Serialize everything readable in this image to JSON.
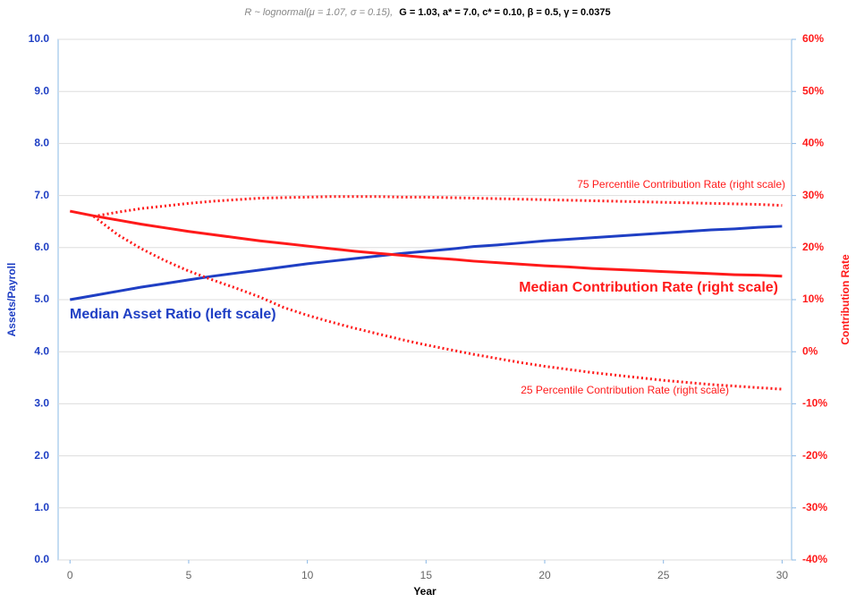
{
  "chart_data": {
    "type": "line",
    "title": {
      "distribution": "R ~ lognormal(μ = 1.07, σ = 0.15),",
      "parameters": "G = 1.03, a* = 7.0, c* = 0.10, β = 0.5, γ = 0.0375"
    },
    "x_label": "Year",
    "y_label": "Assets/Payroll",
    "y2_label": "Contribution Rate",
    "x": [
      0,
      1,
      2,
      3,
      4,
      5,
      6,
      7,
      8,
      9,
      10,
      11,
      12,
      13,
      14,
      15,
      16,
      17,
      18,
      19,
      20,
      21,
      22,
      23,
      24,
      25,
      26,
      27,
      28,
      29,
      30
    ],
    "xlim": [
      -0.5,
      30.4
    ],
    "xticks": [
      0,
      5,
      10,
      15,
      20,
      25,
      30
    ],
    "ylim": [
      0,
      10
    ],
    "yticks": [
      {
        "value": 0,
        "label": "0.0"
      },
      {
        "value": 1,
        "label": "1.0"
      },
      {
        "value": 2,
        "label": "2.0"
      },
      {
        "value": 3,
        "label": "3.0"
      },
      {
        "value": 4,
        "label": "4.0"
      },
      {
        "value": 5,
        "label": "5.0"
      },
      {
        "value": 6,
        "label": "6.0"
      },
      {
        "value": 7,
        "label": "7.0"
      },
      {
        "value": 8,
        "label": "8.0"
      },
      {
        "value": 9,
        "label": "9.0"
      },
      {
        "value": 10,
        "label": "10.0"
      }
    ],
    "y2lim": [
      -40,
      60
    ],
    "y2ticks": [
      {
        "value": -40,
        "label": "-40%"
      },
      {
        "value": -30,
        "label": "-30%"
      },
      {
        "value": -20,
        "label": "-20%"
      },
      {
        "value": -10,
        "label": "-10%"
      },
      {
        "value": 0,
        "label": "0%"
      },
      {
        "value": 10,
        "label": "10%"
      },
      {
        "value": 20,
        "label": "20%"
      },
      {
        "value": 30,
        "label": "30%"
      },
      {
        "value": 40,
        "label": "40%"
      },
      {
        "value": 50,
        "label": "50%"
      },
      {
        "value": 60,
        "label": "60%"
      }
    ],
    "grid": true,
    "series": [
      {
        "name": "Median Asset Ratio (left scale)",
        "color": "#1f3fc4",
        "style": "solid",
        "axis": "y",
        "values": [
          5.0,
          5.08,
          5.16,
          5.24,
          5.31,
          5.38,
          5.45,
          5.51,
          5.57,
          5.63,
          5.69,
          5.74,
          5.79,
          5.84,
          5.89,
          5.93,
          5.97,
          6.02,
          6.05,
          6.09,
          6.13,
          6.16,
          6.19,
          6.22,
          6.25,
          6.28,
          6.31,
          6.34,
          6.36,
          6.39,
          6.41
        ]
      },
      {
        "name": "Median Contribution Rate (right scale)",
        "color": "#ff1a1a",
        "style": "solid",
        "axis": "y2",
        "values": [
          27,
          26.1,
          25.3,
          24.5,
          23.8,
          23.1,
          22.5,
          21.9,
          21.3,
          20.8,
          20.3,
          19.8,
          19.3,
          18.9,
          18.5,
          18.1,
          17.8,
          17.4,
          17.1,
          16.8,
          16.5,
          16.3,
          16.0,
          15.8,
          15.6,
          15.4,
          15.2,
          15.0,
          14.8,
          14.7,
          14.5
        ]
      },
      {
        "name": "75 Percentile Contribution Rate (right scale)",
        "color": "#ff1a1a",
        "style": "dotted",
        "axis": "y2",
        "values": [
          null,
          26.0,
          26.8,
          27.5,
          28.0,
          28.5,
          28.9,
          29.2,
          29.5,
          29.6,
          29.7,
          29.8,
          29.8,
          29.8,
          29.7,
          29.7,
          29.6,
          29.5,
          29.4,
          29.3,
          29.2,
          29.1,
          29.0,
          28.9,
          28.8,
          28.7,
          28.6,
          28.5,
          28.4,
          28.3,
          28.1
        ]
      },
      {
        "name": "25 Percentile Contribution Rate (right scale)",
        "color": "#ff1a1a",
        "style": "dotted",
        "axis": "y2",
        "values": [
          null,
          26,
          22.5,
          19.8,
          17.5,
          15.5,
          13.8,
          12.2,
          10.5,
          8.5,
          7,
          5.7,
          4.5,
          3.4,
          2.3,
          1.3,
          0.4,
          -0.5,
          -1.3,
          -2.1,
          -2.8,
          -3.4,
          -4.0,
          -4.5,
          -5.0,
          -5.5,
          -5.9,
          -6.3,
          -6.6,
          -6.9,
          -7.2
        ]
      }
    ]
  }
}
